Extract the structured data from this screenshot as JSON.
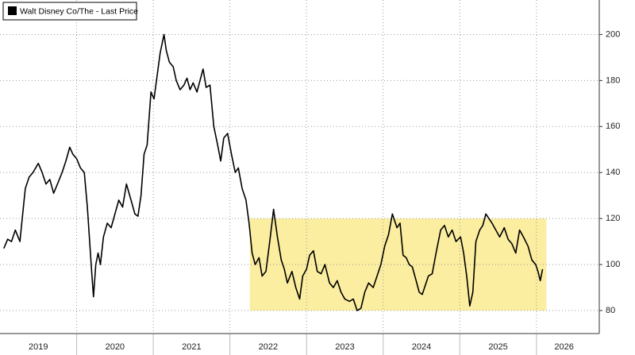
{
  "chart_data": {
    "type": "line",
    "series": [
      {
        "name": "Walt Disney Co/The - Last Price",
        "color": "#000000",
        "values": [
          107,
          111,
          110,
          115,
          110,
          120,
          133,
          138,
          140,
          144,
          140,
          135,
          137,
          131,
          135,
          140,
          145,
          151,
          148,
          146,
          142,
          140,
          125,
          110,
          95,
          86,
          100,
          105,
          100,
          112,
          118,
          116,
          122,
          128,
          125,
          135,
          128,
          122,
          121,
          130,
          148,
          152,
          175,
          172,
          182,
          192,
          200,
          193,
          188,
          186,
          180,
          176,
          178,
          181,
          176,
          179,
          175,
          180,
          185,
          177,
          178,
          160,
          152,
          145,
          155,
          157,
          148,
          140,
          142,
          133,
          128,
          118,
          105,
          100,
          103,
          95,
          97,
          110,
          124,
          112,
          102,
          98,
          92,
          97,
          90,
          85,
          95,
          98,
          104,
          106,
          97,
          96,
          100,
          92,
          90,
          93,
          88,
          85,
          84,
          85,
          80,
          81,
          88,
          92,
          90,
          95,
          100,
          108,
          113,
          122,
          116,
          118,
          104,
          103,
          100,
          99,
          93,
          88,
          87,
          91,
          95,
          96,
          105,
          115,
          117,
          112,
          115,
          110,
          112,
          105,
          95,
          82,
          88,
          110,
          115,
          117,
          122,
          120,
          118,
          115,
          112,
          116,
          111,
          109,
          105,
          115,
          112,
          108,
          102,
          100,
          97,
          93,
          98
        ]
      }
    ],
    "x": [
      2019.05,
      2019.1,
      2019.15,
      2019.2,
      2019.26,
      2019.29,
      2019.33,
      2019.38,
      2019.43,
      2019.5,
      2019.55,
      2019.6,
      2019.65,
      2019.7,
      2019.75,
      2019.81,
      2019.86,
      2019.91,
      2019.95,
      2020.0,
      2020.05,
      2020.1,
      2020.14,
      2020.17,
      2020.2,
      2020.22,
      2020.25,
      2020.28,
      2020.31,
      2020.35,
      2020.4,
      2020.45,
      2020.5,
      2020.55,
      2020.6,
      2020.65,
      2020.71,
      2020.76,
      2020.8,
      2020.84,
      2020.88,
      2020.92,
      2020.97,
      2021.01,
      2021.05,
      2021.09,
      2021.14,
      2021.17,
      2021.21,
      2021.26,
      2021.3,
      2021.35,
      2021.4,
      2021.44,
      2021.48,
      2021.52,
      2021.57,
      2021.61,
      2021.65,
      2021.69,
      2021.74,
      2021.79,
      2021.84,
      2021.88,
      2021.92,
      2021.97,
      2022.02,
      2022.07,
      2022.11,
      2022.16,
      2022.21,
      2022.25,
      2022.29,
      2022.33,
      2022.38,
      2022.42,
      2022.47,
      2022.52,
      2022.57,
      2022.62,
      2022.67,
      2022.71,
      2022.75,
      2022.81,
      2022.86,
      2022.91,
      2022.95,
      2023.0,
      2023.04,
      2023.09,
      2023.14,
      2023.19,
      2023.24,
      2023.3,
      2023.35,
      2023.4,
      2023.45,
      2023.5,
      2023.56,
      2023.61,
      2023.66,
      2023.71,
      2023.76,
      2023.81,
      2023.87,
      2023.92,
      2023.97,
      2024.02,
      2024.07,
      2024.12,
      2024.18,
      2024.22,
      2024.26,
      2024.3,
      2024.34,
      2024.38,
      2024.43,
      2024.47,
      2024.51,
      2024.55,
      2024.59,
      2024.64,
      2024.69,
      2024.75,
      2024.8,
      2024.85,
      2024.9,
      2024.95,
      2025.01,
      2025.05,
      2025.09,
      2025.13,
      2025.17,
      2025.21,
      2025.26,
      2025.3,
      2025.34,
      2025.38,
      2025.42,
      2025.47,
      2025.52,
      2025.58,
      2025.63,
      2025.68,
      2025.73,
      2025.78,
      2025.83,
      2025.89,
      2025.94,
      2025.99,
      2026.02,
      2026.05,
      2026.08
    ],
    "xlim": [
      2019,
      2026.82
    ],
    "ylim": [
      70,
      215
    ],
    "yticks": [
      80,
      100,
      120,
      140,
      160,
      180,
      200
    ],
    "xticks": [
      {
        "value": 2019.5,
        "label": "2019"
      },
      {
        "value": 2020.5,
        "label": "2020"
      },
      {
        "value": 2021.5,
        "label": "2021"
      },
      {
        "value": 2022.5,
        "label": "2022"
      },
      {
        "value": 2023.5,
        "label": "2023"
      },
      {
        "value": 2024.5,
        "label": "2024"
      },
      {
        "value": 2025.5,
        "label": "2025"
      },
      {
        "value": 2026.36,
        "label": "2026"
      }
    ],
    "xgrid": [
      2020,
      2021,
      2022,
      2023,
      2024,
      2025,
      2026
    ],
    "highlight": {
      "xlim": [
        2022.26,
        2026.13
      ],
      "ylim": [
        80,
        120
      ],
      "color": "#fbeea0"
    },
    "grid": true,
    "legend": "upper left"
  }
}
